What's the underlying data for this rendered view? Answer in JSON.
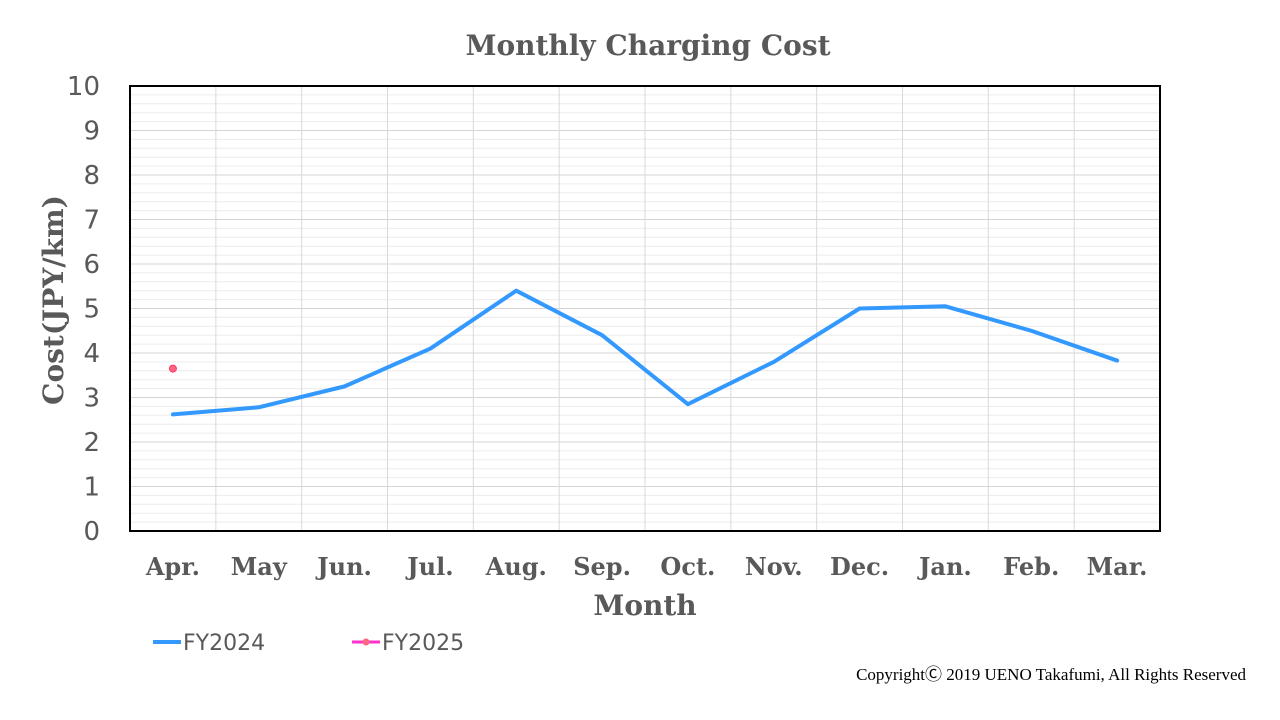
{
  "chart_data": {
    "type": "line",
    "title": "Monthly Charging Cost",
    "xlabel": "Month",
    "ylabel": "Cost(JPY/km)",
    "categories": [
      "Apr.",
      "May",
      "Jun.",
      "Jul.",
      "Aug.",
      "Sep.",
      "Oct.",
      "Nov.",
      "Dec.",
      "Jan.",
      "Feb.",
      "Mar."
    ],
    "ylim": [
      0,
      10
    ],
    "yticks": [
      "0",
      "1",
      "2",
      "3",
      "4",
      "5",
      "6",
      "7",
      "8",
      "9",
      "10"
    ],
    "grid": true,
    "legend_position": "bottom-left",
    "series": [
      {
        "name": "FY2024",
        "color": "#3399ff",
        "marker": "none",
        "values": [
          2.62,
          2.78,
          3.25,
          4.1,
          5.4,
          4.4,
          2.85,
          3.8,
          5.0,
          5.05,
          4.5,
          3.83
        ]
      },
      {
        "name": "FY2025",
        "color": "#ff33cc",
        "marker": "circle",
        "marker_fill": "#ff6680",
        "values": [
          3.65,
          null,
          null,
          null,
          null,
          null,
          null,
          null,
          null,
          null,
          null,
          null
        ]
      }
    ]
  },
  "copyright": "CopyrightⒸ 2019 UENO Takafumi, All Rights Reserved"
}
